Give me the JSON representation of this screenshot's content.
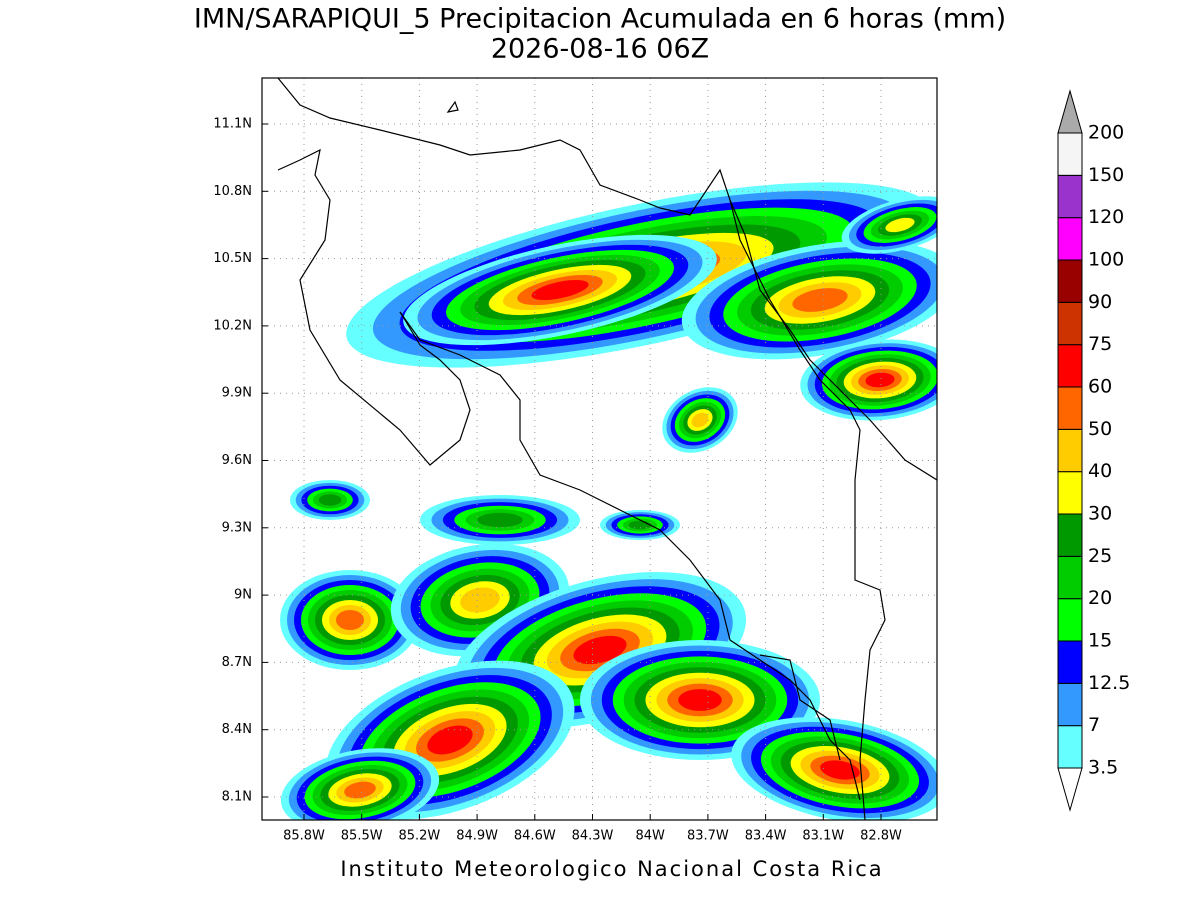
{
  "title": "IMN/SARAPIQUI_5 Precipitacion Acumulada en 6 horas (mm)",
  "subtitle": "2026-08-16 06Z",
  "map": {
    "lat_labels": [
      "11.1N",
      "10.8N",
      "10.5N",
      "10.2N",
      "9.9N",
      "9.6N",
      "9.3N",
      "9N",
      "8.7N",
      "8.4N",
      "8.1N"
    ],
    "lon_labels": [
      "85.8W",
      "85.5W",
      "85.2W",
      "84.9W",
      "84.6W",
      "84.3W",
      "84W",
      "83.7W",
      "83.4W",
      "83.1W",
      "82.8W"
    ]
  },
  "colorbar": {
    "labels": [
      "3.5",
      "7",
      "12.5",
      "15",
      "20",
      "25",
      "30",
      "40",
      "50",
      "60",
      "75",
      "90",
      "100",
      "120",
      "150",
      "200"
    ],
    "colors": [
      "#ffffff",
      "#66ffff",
      "#3399ff",
      "#0000ff",
      "#00ff00",
      "#00cc00",
      "#009900",
      "#ffff00",
      "#ffcc00",
      "#ff6600",
      "#ff0000",
      "#cc3300",
      "#990000",
      "#ff00ff",
      "#9933cc",
      "#f5f5f5",
      "#aaaaaa"
    ]
  },
  "footer": "Instituto Meteorologico Nacional Costa Rica"
}
